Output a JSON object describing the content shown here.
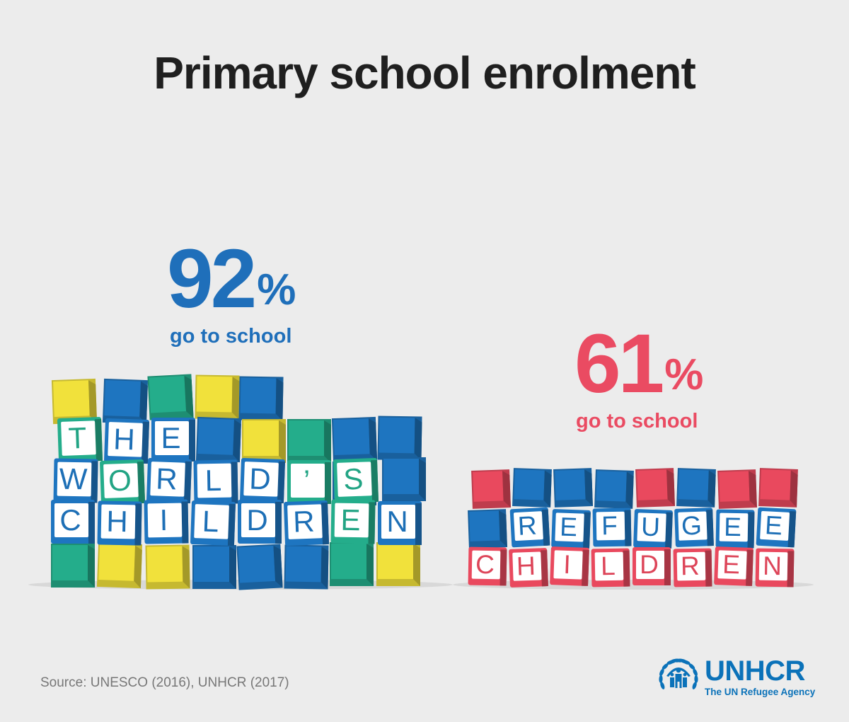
{
  "title": "Primary school enrolment",
  "stats": [
    {
      "value": "92",
      "unit": "%",
      "caption": "go to school",
      "color": "#1f6fba"
    },
    {
      "value": "61",
      "unit": "%",
      "caption": "go to school",
      "color": "#ea4b62"
    }
  ],
  "blocks": {
    "world": {
      "lines": [
        "THE",
        "WORLD'S",
        "CHILDREN"
      ]
    },
    "refugee": {
      "lines": [
        "REFUGEE",
        "CHILDREN"
      ]
    }
  },
  "colors": {
    "text": "#1f1f1f",
    "source": "#777777",
    "background": "#ececec",
    "blue": "#1e75c0",
    "green": "#24ad8b",
    "yellow": "#f1e13b",
    "red": "#e9495e",
    "unhcr_blue": "#0b72b9"
  },
  "source": "Source: UNESCO (2016), UNHCR (2017)",
  "logo": {
    "name": "UNHCR",
    "tagline": "The UN Refugee Agency",
    "icon": "unhcr-emblem-icon"
  }
}
